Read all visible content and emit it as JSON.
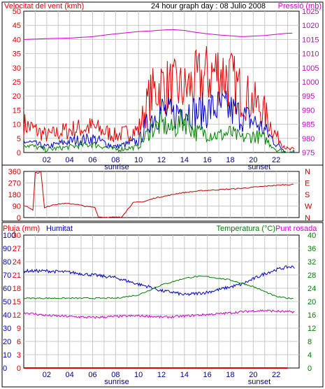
{
  "title": "24 hour graph day : 08 Julio 2008",
  "colors": {
    "wind": "#e00000",
    "wind_avg": "#0000c8",
    "wind_gust_low": "#008000",
    "pressure": "#d000d0",
    "direction": "#c00000",
    "humidity": "#0000c0",
    "temperature": "#008000",
    "dew": "#d000d0",
    "rain": "#e00000",
    "grid": "#c8c8c8"
  },
  "x_ticks": [
    "02",
    "04",
    "06",
    "08",
    "10",
    "12",
    "14",
    "16",
    "18",
    "20",
    "22"
  ],
  "sunrise_label": "sunrise",
  "sunset_label": "sunset",
  "chart_data": [
    {
      "type": "line",
      "panel": "wind-pressure",
      "left_label": "Velocitat del vent (kmh)",
      "right_label": "Pressió (mb)",
      "left_ticks": [
        "0",
        "5",
        "10",
        "15",
        "20",
        "25",
        "30",
        "35",
        "40",
        "45",
        "50"
      ],
      "right_ticks": [
        "975",
        "980",
        "985",
        "990",
        "995",
        "1000",
        "1005",
        "1010",
        "1015",
        "1020",
        "1025"
      ],
      "ylim_left": [
        0,
        50
      ],
      "ylim_right": [
        975,
        1025
      ],
      "x": [
        0,
        2,
        4,
        6,
        8,
        10,
        11,
        12,
        13,
        14,
        15,
        16,
        17,
        18,
        19,
        20,
        21,
        22,
        23
      ],
      "series": [
        {
          "key": "pressure",
          "axis": "right",
          "values": [
            1015,
            1015.3,
            1015.5,
            1016,
            1017,
            1017.8,
            1018,
            1018.3,
            1018.5,
            1018.2,
            1017.5,
            1017,
            1016.6,
            1016.3,
            1016,
            1016.2,
            1016.4,
            1016.8,
            1017.2
          ]
        },
        {
          "key": "wind",
          "axis": "left",
          "values": [
            10,
            6,
            8,
            9,
            6,
            8,
            20,
            24,
            23,
            22,
            25,
            27,
            29,
            26,
            21,
            18,
            14,
            6,
            1
          ]
        },
        {
          "key": "wind_avg",
          "axis": "left",
          "values": [
            4,
            2,
            4,
            5,
            2,
            4,
            12,
            15,
            13,
            16,
            14,
            15,
            16,
            15,
            13,
            11,
            8,
            3,
            0
          ]
        },
        {
          "key": "wind_gust_low",
          "axis": "left",
          "values": [
            3,
            1,
            2,
            3,
            1,
            2,
            8,
            10,
            8,
            12,
            7,
            7,
            6,
            7,
            5,
            6,
            5,
            1,
            0
          ]
        }
      ]
    },
    {
      "type": "line",
      "panel": "wind-direction",
      "left_ticks": [
        "0",
        "90",
        "180",
        "270",
        "360"
      ],
      "right_ticks": [
        "N",
        "W",
        "S",
        "E",
        "N"
      ],
      "ylim_left": [
        0,
        360
      ],
      "x": [
        0,
        0.3,
        0.8,
        1.0,
        1.2,
        1.5,
        1.8,
        2.5,
        3.5,
        4.5,
        5.5,
        6.2,
        6.5,
        7.5,
        8.5,
        9.2,
        9.5,
        10.5,
        11.5,
        12.5,
        13.5,
        14.5,
        15.5,
        16.5,
        17.5,
        18.5,
        19.5,
        20.5,
        21.5,
        22.5,
        23.3
      ],
      "values": [
        95,
        85,
        60,
        355,
        345,
        360,
        75,
        100,
        110,
        105,
        85,
        80,
        5,
        2,
        3,
        80,
        115,
        125,
        155,
        170,
        190,
        200,
        210,
        215,
        220,
        225,
        232,
        240,
        248,
        255,
        258
      ]
    },
    {
      "type": "line",
      "panel": "rain-humidity-temperature",
      "ylabel_rain": "Pluja (mm)",
      "ylabel_humidity": "Humitat",
      "ylabel_temperature": "Temperatura (°C)",
      "ylabel_dew": "Punt rosada",
      "rain_ticks": [
        "0",
        "3",
        "6",
        "9",
        "12",
        "15",
        "18",
        "21",
        "24",
        "27",
        "30"
      ],
      "humidity_ticks": [
        "0",
        "10",
        "20",
        "30",
        "40",
        "50",
        "60",
        "70",
        "80",
        "90",
        "100"
      ],
      "temperature_ticks": [
        "0",
        "4",
        "8",
        "12",
        "16",
        "20",
        "24",
        "28",
        "32",
        "36",
        "40"
      ],
      "ylim_rain": [
        0,
        30
      ],
      "ylim_humidity": [
        0,
        100
      ],
      "ylim_temperature": [
        0,
        40
      ],
      "x": [
        0,
        2,
        4,
        6,
        8,
        10,
        11,
        12,
        13,
        14,
        15,
        16,
        17,
        18,
        19,
        20,
        21,
        22,
        23
      ],
      "series": [
        {
          "key": "humidity",
          "axis": "humidity",
          "values": [
            73,
            73,
            72,
            70,
            68,
            63,
            61,
            58,
            57,
            55,
            56,
            57,
            59,
            61,
            63,
            67,
            71,
            74,
            76
          ]
        },
        {
          "key": "temperature",
          "axis": "temperature",
          "values": [
            21,
            21,
            21,
            21,
            21,
            22,
            23.5,
            25,
            26,
            27,
            27.5,
            27.5,
            27,
            26.5,
            25.5,
            24.5,
            23,
            21.5,
            21
          ]
        },
        {
          "key": "dew",
          "axis": "temperature",
          "values": [
            16.7,
            15.8,
            15.5,
            15.2,
            15.5,
            15.7,
            15.6,
            15.3,
            15.4,
            15.6,
            15.9,
            16.1,
            16.3,
            16.6,
            16.9,
            17.2,
            17.3,
            17.1,
            16.9
          ]
        },
        {
          "key": "rain",
          "axis": "rain",
          "values": [
            0,
            0,
            0,
            0,
            0,
            0,
            0,
            0,
            0,
            0,
            0,
            0,
            0,
            0,
            0,
            0,
            0,
            0,
            0
          ]
        }
      ]
    }
  ]
}
